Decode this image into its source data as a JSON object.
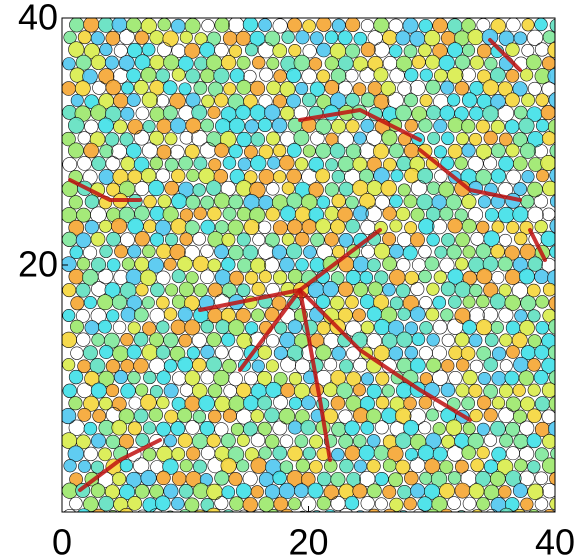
{
  "chart_data": {
    "type": "field",
    "xlim": [
      0,
      40
    ],
    "ylim": [
      0,
      40
    ],
    "xticks": [
      0,
      20,
      40
    ],
    "yticks": [
      20,
      40
    ]
  }
}
